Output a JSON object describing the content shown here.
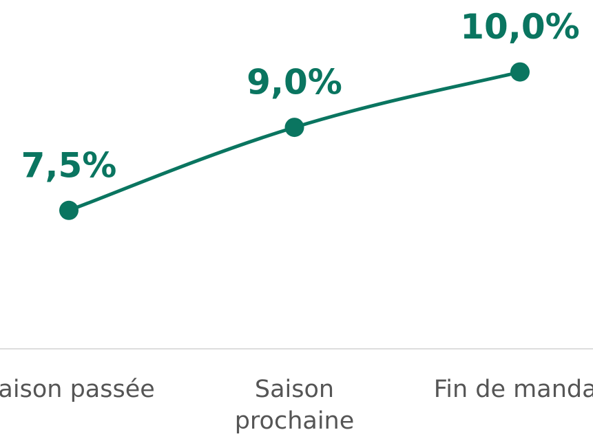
{
  "chart_data": {
    "type": "line",
    "categories": [
      "Saison passée",
      "Saison prochaine",
      "Fin de mandat"
    ],
    "series": [
      {
        "color": "#0a7560",
        "values": [
          7.5,
          9.0,
          10.0
        ],
        "value_labels": [
          "7,5%",
          "9,0%",
          "10,0%"
        ]
      }
    ],
    "ylim": [
      5,
      11.3
    ]
  }
}
